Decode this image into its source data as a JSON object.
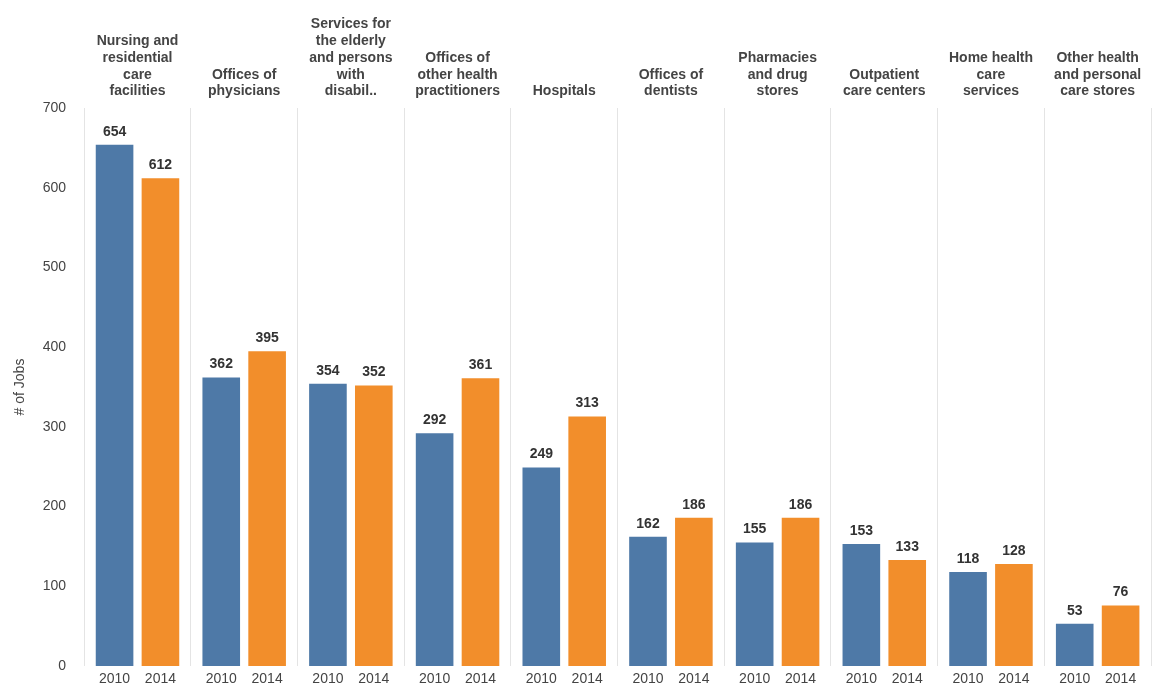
{
  "chart_data": {
    "type": "bar",
    "ylabel": "# of Jobs",
    "ylim": [
      0,
      700
    ],
    "yticks": [
      0,
      100,
      200,
      300,
      400,
      500,
      600,
      700
    ],
    "grid": "x",
    "legend": false,
    "data_labels": true,
    "categories": [
      "Nursing and residential care facilities",
      "Offices of physicians",
      "Services for the elderly and persons with disabil..",
      "Offices of other health practitioners",
      "Hospitals",
      "Offices of dentists",
      "Pharmacies and drug stores",
      "Outpatient care centers",
      "Home health care services",
      "Other health and personal care stores"
    ],
    "series": [
      {
        "name": "2010",
        "color": "#4e79a7",
        "values": [
          654,
          362,
          354,
          292,
          249,
          162,
          155,
          153,
          118,
          53
        ]
      },
      {
        "name": "2014",
        "color": "#f28e2b",
        "values": [
          612,
          395,
          352,
          361,
          313,
          186,
          186,
          133,
          128,
          76
        ]
      }
    ]
  }
}
